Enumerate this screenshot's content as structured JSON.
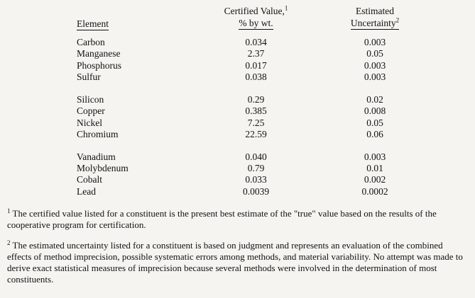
{
  "table": {
    "headers": {
      "element": "Element",
      "value_line1": "Certified Value,",
      "value_sup": "1",
      "value_line2": "% by wt.",
      "uncertainty_line1": "Estimated",
      "uncertainty_line2": "Uncertainty",
      "uncertainty_sup": "2"
    },
    "columns": [
      "element",
      "certified_value_pct_by_wt",
      "estimated_uncertainty"
    ],
    "groups": [
      {
        "rows": [
          {
            "element": "Carbon",
            "value": "0.034",
            "uncertainty": "0.003"
          },
          {
            "element": "Manganese",
            "value": "2.37",
            "uncertainty": "0.05"
          },
          {
            "element": "Phosphorus",
            "value": "0.017",
            "uncertainty": "0.003"
          },
          {
            "element": "Sulfur",
            "value": "0.038",
            "uncertainty": "0.003"
          }
        ]
      },
      {
        "rows": [
          {
            "element": "Silicon",
            "value": "0.29",
            "uncertainty": "0.02"
          },
          {
            "element": "Copper",
            "value": "0.385",
            "uncertainty": "0.008"
          },
          {
            "element": "Nickel",
            "value": "7.25",
            "uncertainty": "0.05"
          },
          {
            "element": "Chromium",
            "value": "22.59",
            "uncertainty": "0.06"
          }
        ]
      },
      {
        "rows": [
          {
            "element": "Vanadium",
            "value": "0.040",
            "uncertainty": "0.003"
          },
          {
            "element": "Molybdenum",
            "value": "0.79",
            "uncertainty": "0.01"
          },
          {
            "element": "Cobalt",
            "value": "0.033",
            "uncertainty": "0.002"
          },
          {
            "element": "Lead",
            "value": "0.0039",
            "uncertainty": "0.0002"
          }
        ]
      }
    ]
  },
  "footnotes": [
    {
      "sup": "1",
      "text": "The certified value listed for a constituent is the present best estimate of the \"true\" value based on the results of the cooperative program for certification."
    },
    {
      "sup": "2",
      "text": "The estimated uncertainty listed for a constituent is based on judgment and represents an evaluation of the combined effects of method imprecision, possible systematic errors among methods, and material variability. No attempt was made to derive exact statistical measures of imprecision because several methods were involved in the determination of most constituents."
    }
  ]
}
